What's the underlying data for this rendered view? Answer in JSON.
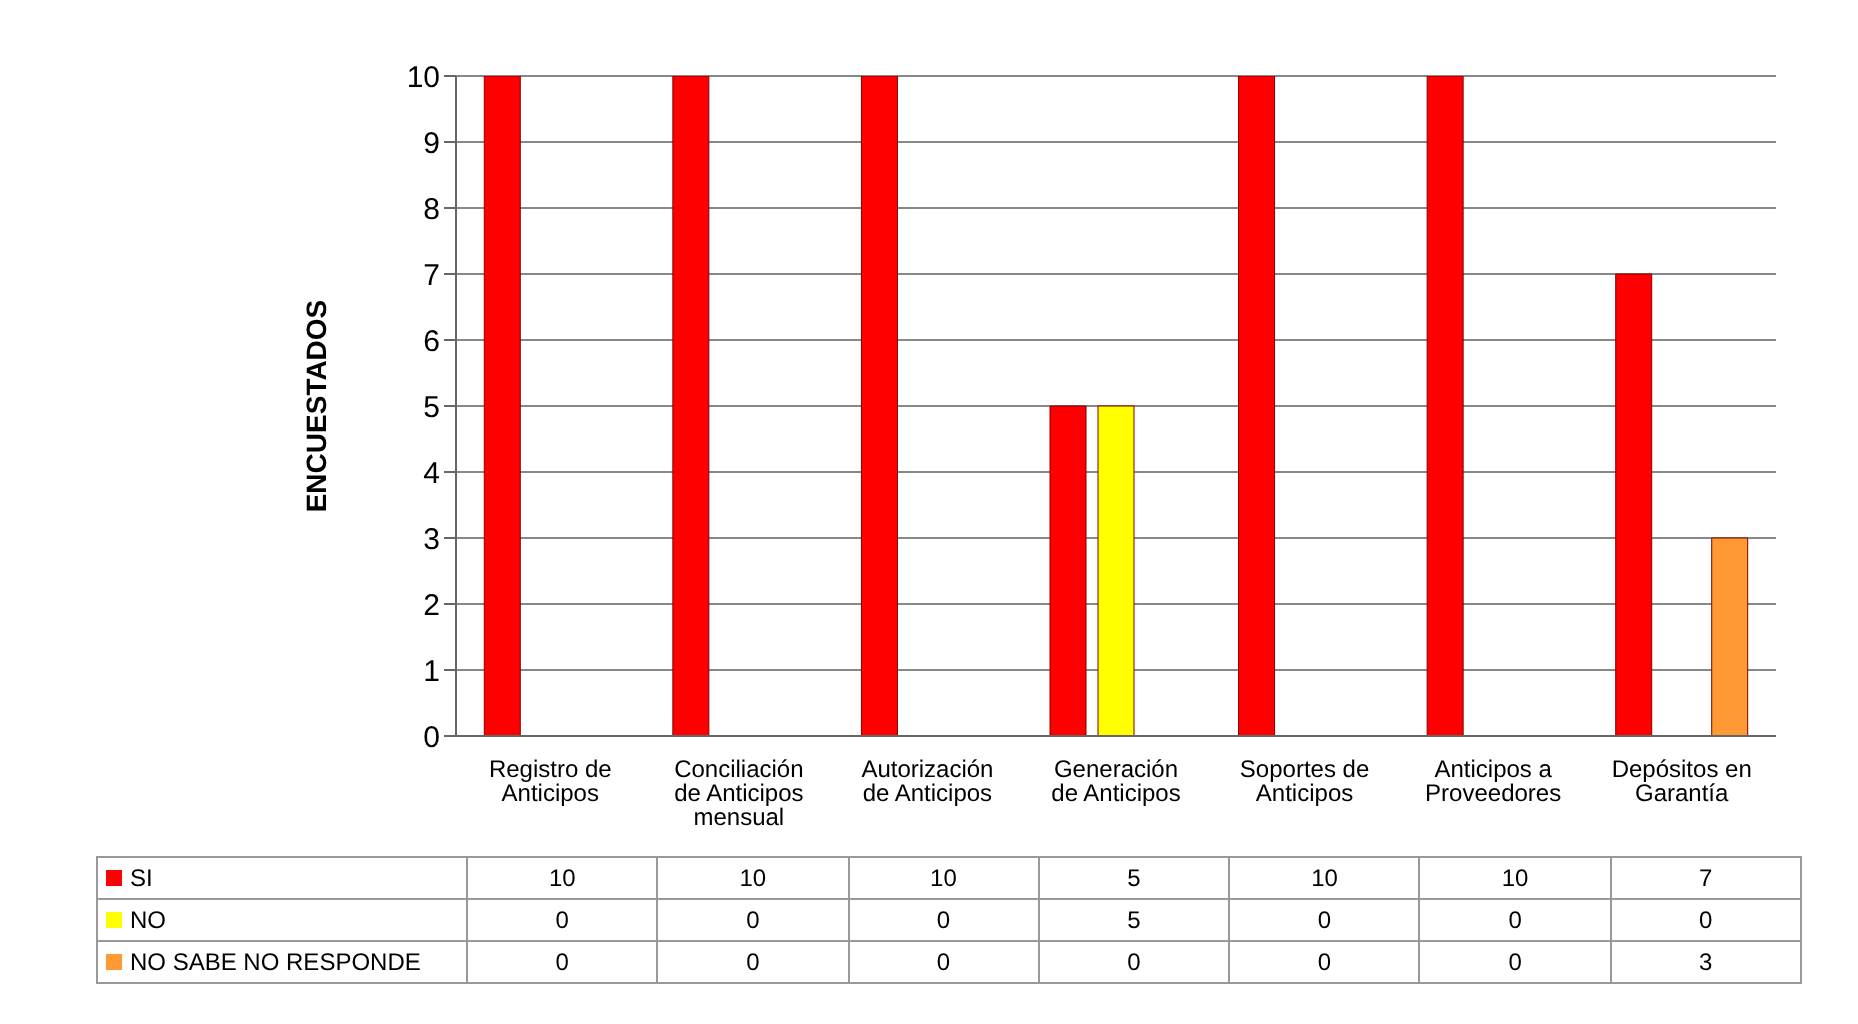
{
  "chart_data": {
    "type": "bar",
    "ylabel": "ENCUESTADOS",
    "categories": [
      "Registro de Anticipos",
      "Conciliación de Anticipos mensual",
      "Autorización de Anticipos",
      "Generación de Anticipos",
      "Soportes de Anticipos",
      "Anticipos a Proveedores",
      "Depósitos en Garantía"
    ],
    "series": [
      {
        "name": "SI",
        "color": "#ff0000",
        "values": [
          10,
          10,
          10,
          5,
          10,
          10,
          7
        ]
      },
      {
        "name": "NO",
        "color": "#ffff00",
        "values": [
          0,
          0,
          0,
          5,
          0,
          0,
          0
        ]
      },
      {
        "name": "NO SABE NO RESPONDE",
        "color": "#ff9933",
        "values": [
          0,
          0,
          0,
          0,
          0,
          0,
          3
        ]
      }
    ],
    "ylim": [
      0,
      10
    ],
    "yticks": [
      0,
      1,
      2,
      3,
      4,
      5,
      6,
      7,
      8,
      9,
      10
    ],
    "grid": "y",
    "legend": "bottom",
    "data_labels": true
  }
}
